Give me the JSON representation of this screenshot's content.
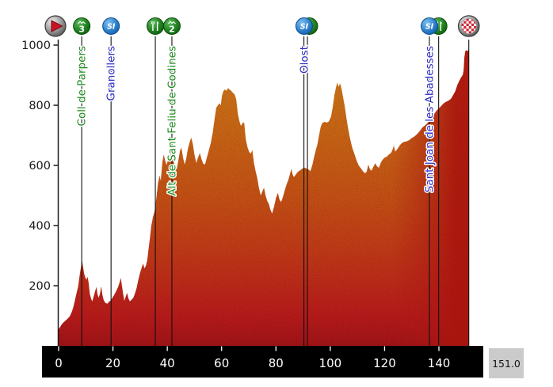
{
  "footer": {
    "total_distance": "151.0"
  },
  "colors": {
    "label_green": "#1f8a1f",
    "label_blue": "#2b2bc4",
    "axis_text": "#1a1a1a",
    "xaxis_band": "#000000",
    "xaxis_text": "#ffffff",
    "marker_line": "#111111",
    "profile_low": "#a81418",
    "profile_mid": "#c64f15",
    "profile_high": "#d07a1a",
    "profile_right_red": "#b41a14",
    "climb_icon_green": "#1e7e1e",
    "sprint_icon_blue": "#2a7cc9",
    "finish_checker_red": "#cf2433",
    "start_triangle_red": "#c81526"
  },
  "chart_data": {
    "type": "area",
    "description": "Cycling stage elevation profile",
    "x_ticks": [
      0,
      20,
      40,
      60,
      80,
      100,
      120,
      140
    ],
    "y_ticks": [
      200,
      400,
      600,
      800,
      1000
    ],
    "xlim": [
      0,
      151
    ],
    "ylim": [
      0,
      1020
    ],
    "total_distance_km": 151.0,
    "grid": false,
    "markers": [
      {
        "type": "start",
        "icon": "start-icon",
        "km": 0,
        "label": "",
        "label_color": "",
        "line_kms": []
      },
      {
        "type": "climb-cat-3",
        "icon": "category-3-climb-icon",
        "badge": "3",
        "km": 8.5,
        "label": "Coll de Parpers",
        "label_color": "green",
        "line_kms": [
          8.5
        ]
      },
      {
        "type": "sprint",
        "icon": "intermediate-sprint-icon",
        "badge": "SI",
        "km": 19.3,
        "label": "Granollers",
        "label_color": "blue",
        "line_kms": [
          19.3
        ]
      },
      {
        "type": "feed",
        "icon": "feed-zone-icon",
        "km": 35.6,
        "label": "",
        "label_color": "",
        "line_kms": [
          35.6
        ]
      },
      {
        "type": "climb-cat-2",
        "icon": "category-2-climb-icon",
        "badge": "2",
        "km": 41.7,
        "label": "Alt de Sant Feliu de Codines",
        "label_color": "green",
        "line_kms": [
          41.7
        ]
      },
      {
        "type": "sprint",
        "icon": "intermediate-sprint-icon",
        "badge": "SI",
        "km": 90.4,
        "label": "Olost",
        "label_color": "blue",
        "line_kms": [
          90.3,
          91.6
        ],
        "feed_behind": true
      },
      {
        "type": "sprint",
        "icon": "intermediate-sprint-icon",
        "badge": "SI",
        "km": 136.5,
        "label": "Sant Joan de les Abadesses",
        "label_color": "blue",
        "line_kms": [
          136.5
        ]
      },
      {
        "type": "feed",
        "icon": "feed-zone-icon",
        "km": 139.9,
        "label": "",
        "label_color": "",
        "line_kms": [
          139.9
        ]
      },
      {
        "type": "finish",
        "icon": "finish-icon",
        "km": 151,
        "label": "",
        "label_color": "",
        "line_kms": [
          151
        ]
      }
    ],
    "profile_points": [
      [
        0,
        55
      ],
      [
        0.6,
        64
      ],
      [
        1.2,
        72
      ],
      [
        1.8,
        78
      ],
      [
        2.4,
        83
      ],
      [
        3,
        88
      ],
      [
        3.6,
        93
      ],
      [
        4.2,
        100
      ],
      [
        4.8,
        112
      ],
      [
        5.4,
        128
      ],
      [
        6,
        152
      ],
      [
        6.6,
        175
      ],
      [
        7.2,
        198
      ],
      [
        7.8,
        238
      ],
      [
        8.2,
        260
      ],
      [
        8.6,
        285
      ],
      [
        9,
        262
      ],
      [
        9.4,
        240
      ],
      [
        9.9,
        226
      ],
      [
        10.3,
        220
      ],
      [
        10.7,
        230
      ],
      [
        11.1,
        204
      ],
      [
        11.5,
        172
      ],
      [
        12,
        156
      ],
      [
        12.4,
        148
      ],
      [
        12.9,
        164
      ],
      [
        13.4,
        180
      ],
      [
        13.9,
        196
      ],
      [
        14.3,
        172
      ],
      [
        14.7,
        160
      ],
      [
        15.2,
        172
      ],
      [
        15.7,
        198
      ],
      [
        16.1,
        170
      ],
      [
        16.6,
        152
      ],
      [
        17.2,
        143
      ],
      [
        17.9,
        140
      ],
      [
        18.5,
        146
      ],
      [
        19.2,
        151
      ],
      [
        19.8,
        160
      ],
      [
        20.5,
        170
      ],
      [
        21.2,
        182
      ],
      [
        21.9,
        196
      ],
      [
        22.5,
        212
      ],
      [
        22.9,
        226
      ],
      [
        23.3,
        200
      ],
      [
        23.8,
        170
      ],
      [
        24.2,
        150
      ],
      [
        24.7,
        164
      ],
      [
        25.2,
        176
      ],
      [
        25.7,
        158
      ],
      [
        26.2,
        148
      ],
      [
        26.8,
        153
      ],
      [
        27.5,
        160
      ],
      [
        28.1,
        174
      ],
      [
        28.7,
        192
      ],
      [
        29.3,
        218
      ],
      [
        29.9,
        240
      ],
      [
        30.5,
        258
      ],
      [
        31.1,
        274
      ],
      [
        31.6,
        257
      ],
      [
        32.1,
        266
      ],
      [
        32.6,
        284
      ],
      [
        33.1,
        322
      ],
      [
        33.6,
        358
      ],
      [
        34.1,
        398
      ],
      [
        34.7,
        428
      ],
      [
        35.3,
        446
      ],
      [
        36,
        492
      ],
      [
        36.6,
        542
      ],
      [
        37.2,
        566
      ],
      [
        37.6,
        549
      ],
      [
        38.2,
        612
      ],
      [
        38.7,
        636
      ],
      [
        39.2,
        617
      ],
      [
        39.7,
        601
      ],
      [
        40.3,
        619
      ],
      [
        40.9,
        630
      ],
      [
        41.5,
        642
      ],
      [
        41.9,
        637
      ],
      [
        42.4,
        612
      ],
      [
        42.9,
        592
      ],
      [
        43.5,
        589
      ],
      [
        44.1,
        618
      ],
      [
        44.7,
        650
      ],
      [
        45.2,
        659
      ],
      [
        45.8,
        626
      ],
      [
        46.4,
        603
      ],
      [
        47,
        623
      ],
      [
        47.6,
        656
      ],
      [
        48.2,
        676
      ],
      [
        48.8,
        693
      ],
      [
        49.4,
        671
      ],
      [
        50,
        636
      ],
      [
        50.7,
        608
      ],
      [
        51.3,
        626
      ],
      [
        52,
        641
      ],
      [
        52.6,
        621
      ],
      [
        53.2,
        606
      ],
      [
        53.9,
        603
      ],
      [
        54.6,
        627
      ],
      [
        55.3,
        650
      ],
      [
        56,
        674
      ],
      [
        56.7,
        707
      ],
      [
        57.4,
        754
      ],
      [
        58,
        791
      ],
      [
        58.7,
        801
      ],
      [
        59.3,
        807
      ],
      [
        59.7,
        799
      ],
      [
        60.1,
        831
      ],
      [
        60.6,
        846
      ],
      [
        61.2,
        853
      ],
      [
        61.8,
        848
      ],
      [
        62.4,
        857
      ],
      [
        63,
        852
      ],
      [
        63.6,
        847
      ],
      [
        64.2,
        841
      ],
      [
        64.8,
        836
      ],
      [
        65.4,
        819
      ],
      [
        66,
        770
      ],
      [
        66.6,
        746
      ],
      [
        67.1,
        731
      ],
      [
        67.7,
        741
      ],
      [
        68.3,
        743
      ],
      [
        68.9,
        687
      ],
      [
        69.5,
        661
      ],
      [
        70.1,
        646
      ],
      [
        70.7,
        639
      ],
      [
        71.3,
        651
      ],
      [
        71.9,
        609
      ],
      [
        72.5,
        581
      ],
      [
        73.1,
        559
      ],
      [
        73.7,
        527
      ],
      [
        74.4,
        500
      ],
      [
        75,
        513
      ],
      [
        75.6,
        526
      ],
      [
        76.2,
        499
      ],
      [
        76.8,
        482
      ],
      [
        77.4,
        471
      ],
      [
        78,
        452
      ],
      [
        78.6,
        440
      ],
      [
        79.3,
        463
      ],
      [
        80,
        491
      ],
      [
        80.7,
        509
      ],
      [
        81.3,
        487
      ],
      [
        81.9,
        478
      ],
      [
        82.6,
        496
      ],
      [
        83.3,
        519
      ],
      [
        84,
        539
      ],
      [
        84.6,
        553
      ],
      [
        85.2,
        572
      ],
      [
        85.7,
        589
      ],
      [
        86.1,
        571
      ],
      [
        86.6,
        561
      ],
      [
        87.3,
        569
      ],
      [
        88,
        578
      ],
      [
        88.8,
        583
      ],
      [
        89.6,
        589
      ],
      [
        90.4,
        593
      ],
      [
        91.2,
        590
      ],
      [
        92,
        586
      ],
      [
        92.7,
        581
      ],
      [
        93.4,
        601
      ],
      [
        94,
        626
      ],
      [
        94.7,
        652
      ],
      [
        95.3,
        670
      ],
      [
        95.9,
        702
      ],
      [
        96.5,
        729
      ],
      [
        97.1,
        741
      ],
      [
        97.9,
        745
      ],
      [
        98.7,
        742
      ],
      [
        99.5,
        746
      ],
      [
        100.3,
        763
      ],
      [
        100.9,
        792
      ],
      [
        101.5,
        833
      ],
      [
        102.1,
        859
      ],
      [
        102.6,
        876
      ],
      [
        103.1,
        861
      ],
      [
        103.6,
        873
      ],
      [
        104.1,
        857
      ],
      [
        104.7,
        827
      ],
      [
        105.3,
        799
      ],
      [
        105.9,
        760
      ],
      [
        106.6,
        721
      ],
      [
        107.3,
        689
      ],
      [
        108.1,
        659
      ],
      [
        108.9,
        638
      ],
      [
        109.7,
        616
      ],
      [
        110.5,
        599
      ],
      [
        111.3,
        590
      ],
      [
        112.1,
        580
      ],
      [
        112.8,
        574
      ],
      [
        113.4,
        579
      ],
      [
        114,
        603
      ],
      [
        114.6,
        587
      ],
      [
        115.2,
        582
      ],
      [
        115.9,
        596
      ],
      [
        116.6,
        607
      ],
      [
        117.2,
        597
      ],
      [
        117.9,
        592
      ],
      [
        118.6,
        609
      ],
      [
        119.3,
        619
      ],
      [
        120,
        626
      ],
      [
        120.8,
        629
      ],
      [
        121.6,
        636
      ],
      [
        122.4,
        642
      ],
      [
        123,
        654
      ],
      [
        123.4,
        666
      ],
      [
        123.9,
        646
      ],
      [
        124.6,
        653
      ],
      [
        125.3,
        663
      ],
      [
        126,
        671
      ],
      [
        126.8,
        677
      ],
      [
        127.6,
        679
      ],
      [
        128.4,
        681
      ],
      [
        129.2,
        685
      ],
      [
        130,
        691
      ],
      [
        130.8,
        695
      ],
      [
        131.6,
        701
      ],
      [
        132.4,
        708
      ],
      [
        133.2,
        717
      ],
      [
        133.9,
        726
      ],
      [
        134.6,
        731
      ],
      [
        135.3,
        736
      ],
      [
        136,
        743
      ],
      [
        136.7,
        753
      ],
      [
        137.4,
        761
      ],
      [
        138.2,
        769
      ],
      [
        139,
        781
      ],
      [
        139.9,
        789
      ],
      [
        140.8,
        797
      ],
      [
        141.7,
        806
      ],
      [
        142.6,
        811
      ],
      [
        143.5,
        815
      ],
      [
        144.4,
        821
      ],
      [
        145.2,
        833
      ],
      [
        146,
        846
      ],
      [
        146.8,
        867
      ],
      [
        147.5,
        881
      ],
      [
        148.2,
        893
      ],
      [
        148.8,
        901
      ],
      [
        149.1,
        915
      ],
      [
        149.4,
        960
      ],
      [
        149.7,
        980
      ],
      [
        150.2,
        983
      ],
      [
        150.7,
        980
      ],
      [
        151,
        985
      ]
    ]
  }
}
